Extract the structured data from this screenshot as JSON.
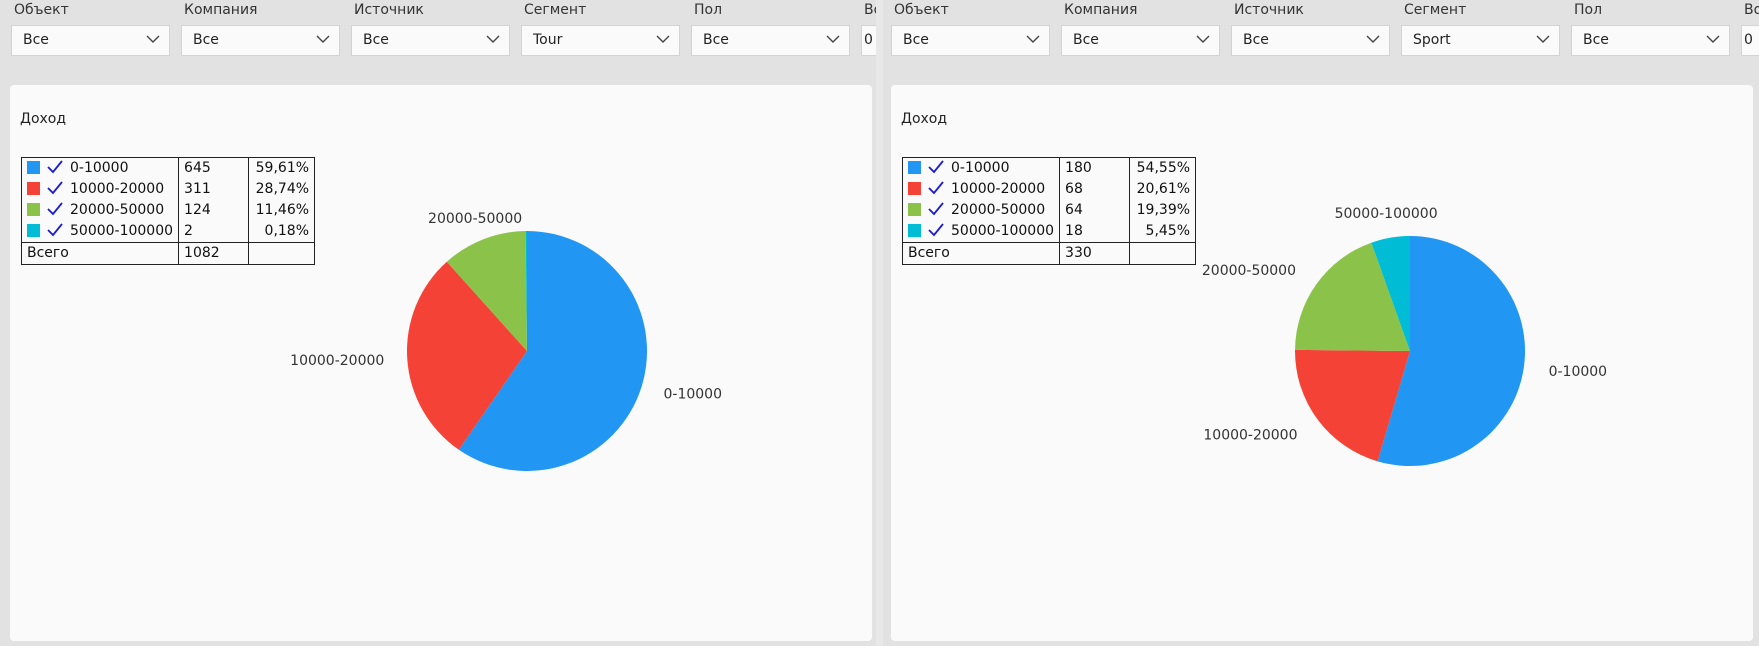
{
  "filters_left": [
    {
      "label": "Объект",
      "value": "Все"
    },
    {
      "label": "Компания",
      "value": "Все"
    },
    {
      "label": "Источник",
      "value": "Все"
    },
    {
      "label": "Сегмент",
      "value": "Tour"
    },
    {
      "label": "Пол",
      "value": "Все"
    },
    {
      "label": "Во",
      "value": "0"
    }
  ],
  "filters_right": [
    {
      "label": "Объект",
      "value": "Все"
    },
    {
      "label": "Компания",
      "value": "Все"
    },
    {
      "label": "Источник",
      "value": "Все"
    },
    {
      "label": "Сегмент",
      "value": "Sport"
    },
    {
      "label": "Пол",
      "value": "Все"
    },
    {
      "label": "Во",
      "value": "0"
    }
  ],
  "chart_data": [
    {
      "type": "pie",
      "title": "Доход",
      "segment_filter": "Tour",
      "categories": [
        "0-10000",
        "10000-20000",
        "20000-50000",
        "50000-100000"
      ],
      "values": [
        645,
        311,
        124,
        2
      ],
      "percents": [
        "59,61%",
        "28,74%",
        "11,46%",
        "0,18%"
      ],
      "colors": [
        "#2196f3",
        "#f44336",
        "#8bc34a",
        "#00bcd4"
      ],
      "slice_labels": [
        "0-10000",
        "10000-20000",
        "20000-50000",
        ""
      ],
      "total_label": "Всего",
      "total": 1082
    },
    {
      "type": "pie",
      "title": "Доход",
      "segment_filter": "Sport",
      "categories": [
        "0-10000",
        "10000-20000",
        "20000-50000",
        "50000-100000"
      ],
      "values": [
        180,
        68,
        64,
        18
      ],
      "percents": [
        "54,55%",
        "20,61%",
        "19,39%",
        "5,45%"
      ],
      "colors": [
        "#2196f3",
        "#f44336",
        "#8bc34a",
        "#00bcd4"
      ],
      "slice_labels": [
        "0-10000",
        "10000-20000",
        "20000-50000",
        "50000-100000"
      ],
      "total_label": "Всего",
      "total": 330
    }
  ]
}
